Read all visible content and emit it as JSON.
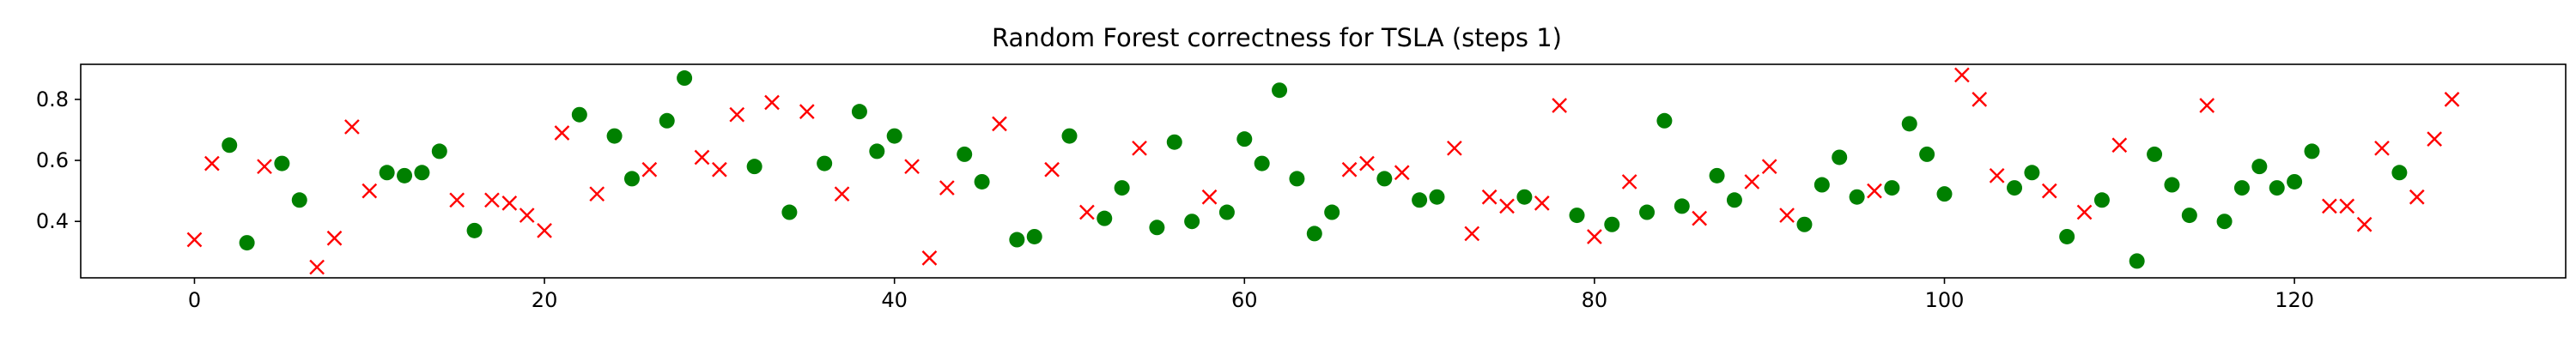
{
  "chart_data": {
    "type": "scatter",
    "title": "Random Forest correctness for TSLA (steps 1)",
    "xlabel": "",
    "ylabel": "",
    "xlim": [
      -6.5,
      135.5
    ],
    "ylim": [
      0.215,
      0.915
    ],
    "xticks": [
      0,
      20,
      40,
      60,
      80,
      100,
      120
    ],
    "yticks": [
      0.4,
      0.6,
      0.8
    ],
    "grid": false,
    "legend": "none",
    "series": [
      {
        "marker": "circle",
        "color": "#008000",
        "points": [
          [
            2,
            0.65
          ],
          [
            3,
            0.33
          ],
          [
            5,
            0.59
          ],
          [
            6,
            0.47
          ],
          [
            11,
            0.56
          ],
          [
            12,
            0.55
          ],
          [
            13,
            0.56
          ],
          [
            14,
            0.63
          ],
          [
            16,
            0.37
          ],
          [
            22,
            0.75
          ],
          [
            24,
            0.68
          ],
          [
            25,
            0.54
          ],
          [
            27,
            0.73
          ],
          [
            28,
            0.87
          ],
          [
            32,
            0.58
          ],
          [
            34,
            0.43
          ],
          [
            36,
            0.59
          ],
          [
            38,
            0.76
          ],
          [
            39,
            0.63
          ],
          [
            40,
            0.68
          ],
          [
            44,
            0.62
          ],
          [
            45,
            0.53
          ],
          [
            47,
            0.34
          ],
          [
            48,
            0.35
          ],
          [
            50,
            0.68
          ],
          [
            52,
            0.41
          ],
          [
            53,
            0.51
          ],
          [
            55,
            0.38
          ],
          [
            56,
            0.66
          ],
          [
            57,
            0.4
          ],
          [
            59,
            0.43
          ],
          [
            60,
            0.67
          ],
          [
            61,
            0.59
          ],
          [
            62,
            0.83
          ],
          [
            63,
            0.54
          ],
          [
            64,
            0.36
          ],
          [
            65,
            0.43
          ],
          [
            68,
            0.54
          ],
          [
            70,
            0.47
          ],
          [
            71,
            0.48
          ],
          [
            76,
            0.48
          ],
          [
            79,
            0.42
          ],
          [
            81,
            0.39
          ],
          [
            83,
            0.43
          ],
          [
            84,
            0.73
          ],
          [
            85,
            0.45
          ],
          [
            87,
            0.55
          ],
          [
            88,
            0.47
          ],
          [
            92,
            0.39
          ],
          [
            93,
            0.52
          ],
          [
            94,
            0.61
          ],
          [
            95,
            0.48
          ],
          [
            97,
            0.51
          ],
          [
            98,
            0.72
          ],
          [
            99,
            0.62
          ],
          [
            100,
            0.49
          ],
          [
            104,
            0.51
          ],
          [
            105,
            0.56
          ],
          [
            107,
            0.35
          ],
          [
            109,
            0.47
          ],
          [
            111,
            0.27
          ],
          [
            112,
            0.62
          ],
          [
            113,
            0.52
          ],
          [
            114,
            0.42
          ],
          [
            116,
            0.4
          ],
          [
            117,
            0.51
          ],
          [
            118,
            0.58
          ],
          [
            119,
            0.51
          ],
          [
            120,
            0.53
          ],
          [
            121,
            0.63
          ],
          [
            126,
            0.56
          ]
        ]
      },
      {
        "marker": "x",
        "color": "#ff0000",
        "points": [
          [
            0,
            0.34
          ],
          [
            1,
            0.59
          ],
          [
            4,
            0.58
          ],
          [
            7,
            0.25
          ],
          [
            8,
            0.345
          ],
          [
            9,
            0.71
          ],
          [
            10,
            0.5
          ],
          [
            15,
            0.47
          ],
          [
            17,
            0.47
          ],
          [
            18,
            0.46
          ],
          [
            19,
            0.42
          ],
          [
            20,
            0.37
          ],
          [
            21,
            0.69
          ],
          [
            23,
            0.49
          ],
          [
            26,
            0.57
          ],
          [
            29,
            0.61
          ],
          [
            30,
            0.57
          ],
          [
            31,
            0.75
          ],
          [
            33,
            0.79
          ],
          [
            35,
            0.76
          ],
          [
            37,
            0.49
          ],
          [
            41,
            0.58
          ],
          [
            42,
            0.28
          ],
          [
            43,
            0.51
          ],
          [
            46,
            0.72
          ],
          [
            49,
            0.57
          ],
          [
            51,
            0.43
          ],
          [
            54,
            0.64
          ],
          [
            58,
            0.48
          ],
          [
            66,
            0.57
          ],
          [
            67,
            0.59
          ],
          [
            69,
            0.56
          ],
          [
            72,
            0.64
          ],
          [
            73,
            0.36
          ],
          [
            74,
            0.48
          ],
          [
            75,
            0.45
          ],
          [
            77,
            0.46
          ],
          [
            78,
            0.78
          ],
          [
            80,
            0.35
          ],
          [
            82,
            0.53
          ],
          [
            86,
            0.41
          ],
          [
            89,
            0.53
          ],
          [
            90,
            0.58
          ],
          [
            91,
            0.42
          ],
          [
            96,
            0.5
          ],
          [
            101,
            0.88
          ],
          [
            102,
            0.8
          ],
          [
            103,
            0.55
          ],
          [
            106,
            0.5
          ],
          [
            108,
            0.43
          ],
          [
            110,
            0.65
          ],
          [
            115,
            0.78
          ],
          [
            122,
            0.45
          ],
          [
            123,
            0.45
          ],
          [
            124,
            0.39
          ],
          [
            125,
            0.64
          ],
          [
            127,
            0.48
          ],
          [
            128,
            0.67
          ],
          [
            129,
            0.8
          ]
        ]
      }
    ]
  }
}
